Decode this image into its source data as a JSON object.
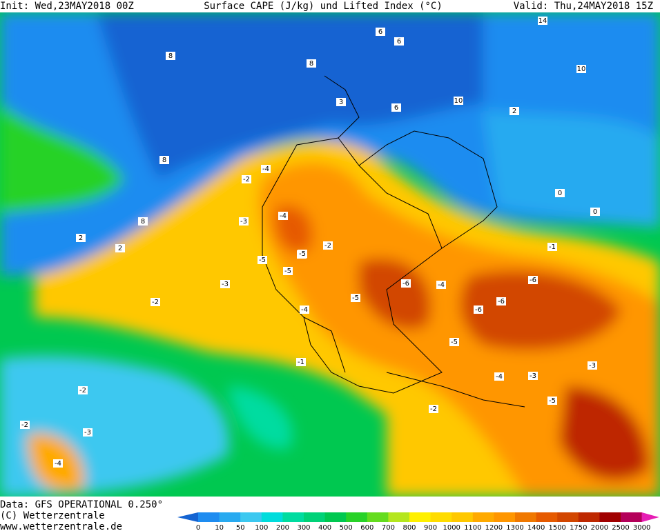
{
  "header": {
    "init": "Init: Wed,23MAY2018 00Z",
    "title": "Surface CAPE (J/kg) und Lifted Index (°C)",
    "valid": "Valid: Thu,24MAY2018 15Z"
  },
  "map": {
    "contour_labels": [
      8,
      8,
      8,
      6,
      3,
      2,
      14,
      10,
      8,
      10,
      6,
      6,
      2,
      2,
      0,
      0,
      -4,
      -2,
      -3,
      -4,
      -5,
      -5,
      -6,
      -6,
      -5,
      -5,
      -4,
      -3,
      -2,
      -2,
      -1,
      -2,
      -3,
      -4,
      -6,
      -6,
      -5,
      -3,
      -2,
      -4,
      -5,
      -1,
      -2,
      -4,
      -3,
      -5
    ]
  },
  "footer": {
    "data": "Data: GFS OPERATIONAL 0.250°",
    "copyright": "(C) Wetterzentrale",
    "url": "www.wetterzentrale.de"
  },
  "colorbar": {
    "ticks": [
      0,
      10,
      50,
      100,
      200,
      300,
      400,
      500,
      600,
      700,
      800,
      900,
      1000,
      1100,
      1200,
      1300,
      1400,
      1500,
      1750,
      2000,
      2500,
      3000
    ],
    "colors": [
      "#1464d2",
      "#1e8cf0",
      "#28aaf0",
      "#3cc8f0",
      "#00dcdc",
      "#00dca0",
      "#00d278",
      "#00c850",
      "#28d228",
      "#64dc1e",
      "#b4e61e",
      "#fff000",
      "#ffdc00",
      "#ffc800",
      "#ffaa00",
      "#ff9600",
      "#f07800",
      "#e65a00",
      "#d24600",
      "#be2800",
      "#a00000",
      "#b4005a",
      "#e61eb4"
    ]
  }
}
